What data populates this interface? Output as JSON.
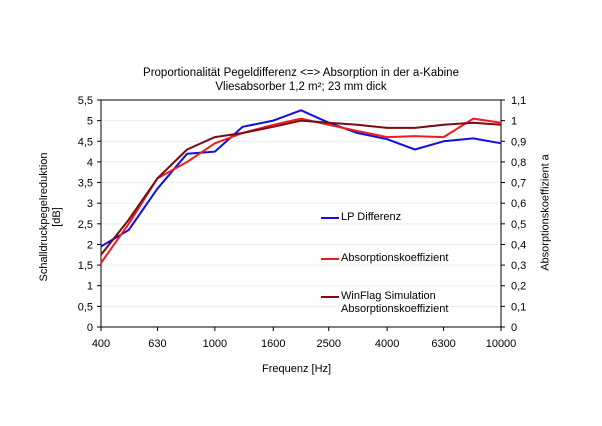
{
  "chart_data": {
    "type": "line",
    "title": "Proportionalität Pegeldifferenz <=> Absorption in der a-Kabine",
    "subtitle": "Vliesabsorber 1,2 m²; 23 mm dick",
    "xlabel": "Frequenz [Hz]",
    "ylabel_left_line1": "Schalldruckpegelreduktion",
    "ylabel_left_line2": "[dB]",
    "ylabel_right": "Absorptionskoeffizient  a",
    "x_tick_labels": [
      "400",
      "630",
      "1000",
      "1600",
      "2500",
      "4000",
      "6300",
      "10000"
    ],
    "x_tick_values": [
      400,
      630,
      1000,
      1600,
      2500,
      4000,
      6300,
      10000
    ],
    "xlim": [
      400,
      10000
    ],
    "x_scale": "log",
    "y_left_ticks": [
      "0",
      "0,5",
      "1",
      "1,5",
      "2",
      "2,5",
      "3",
      "3,5",
      "4",
      "4,5",
      "5",
      "5,5"
    ],
    "ylim_left": [
      0,
      5.5
    ],
    "y_right_ticks": [
      "0",
      "0,1",
      "0,2",
      "0,3",
      "0,4",
      "0,5",
      "0,6",
      "0,7",
      "0,8",
      "0,9",
      "1",
      "1,1"
    ],
    "ylim_right": [
      0,
      1.1
    ],
    "grid": "horizontal",
    "legend_position": "right",
    "x": [
      400,
      500,
      630,
      800,
      1000,
      1250,
      1600,
      2000,
      2500,
      3150,
      4000,
      5000,
      6300,
      8000,
      10000
    ],
    "series": [
      {
        "name": "LP Differenz",
        "axis": "left",
        "color": "#1010e0",
        "values": [
          1.95,
          2.35,
          3.35,
          4.2,
          4.25,
          4.85,
          5.0,
          5.25,
          4.95,
          4.7,
          4.55,
          4.3,
          4.5,
          4.57,
          4.45
        ]
      },
      {
        "name": "Absorptionskoeffizient",
        "axis": "right",
        "color": "#ee1c1c",
        "values": [
          0.31,
          0.5,
          0.72,
          0.8,
          0.89,
          0.94,
          0.98,
          1.01,
          0.98,
          0.95,
          0.92,
          0.925,
          0.92,
          1.01,
          0.99
        ]
      },
      {
        "name": "WinFlag Simulation\nAbsorptionskoeffizient",
        "axis": "right",
        "color": "#7a0a14",
        "values": [
          0.35,
          0.52,
          0.72,
          0.86,
          0.92,
          0.94,
          0.97,
          1.0,
          0.99,
          0.98,
          0.965,
          0.965,
          0.98,
          0.99,
          0.98
        ]
      }
    ]
  }
}
